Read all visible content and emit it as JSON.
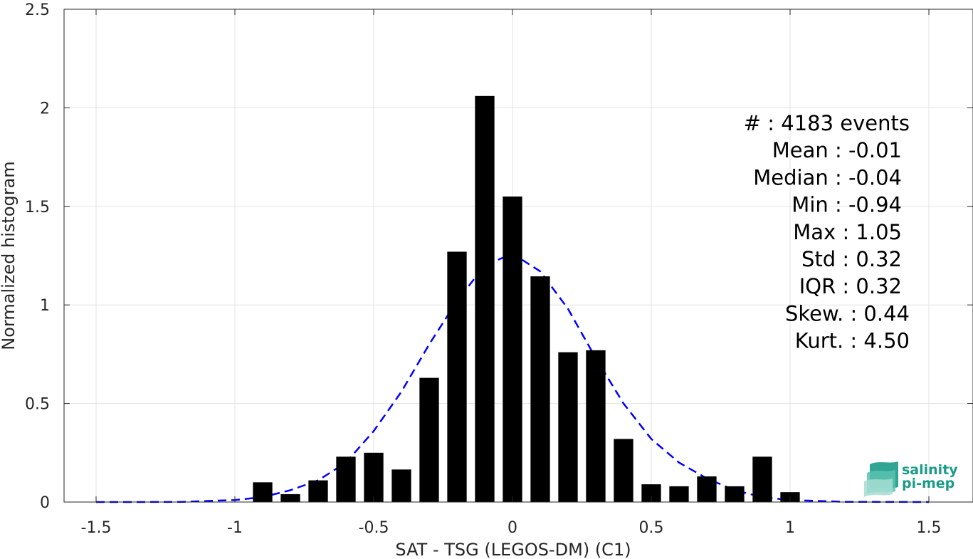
{
  "chart_data": {
    "type": "bar",
    "xlabel": "SAT - TSG (LEGOS-DM) (C1)",
    "ylabel": "Normalized histogram",
    "xlim": [
      -1.5,
      1.5
    ],
    "ylim": [
      0,
      2.5
    ],
    "x_ticks": [
      -1.5,
      -1,
      -0.5,
      0,
      0.5,
      1,
      1.5
    ],
    "x_tick_labels": [
      "-1.5",
      "-1",
      "-0.5",
      "0",
      "0.5",
      "1",
      "1.5"
    ],
    "y_ticks": [
      0,
      0.5,
      1,
      1.5,
      2,
      2.5
    ],
    "y_tick_labels": [
      "0",
      "0.5",
      "1",
      "1.5",
      "2",
      "2.5"
    ],
    "grid": true,
    "bar_color": "#000000",
    "bar_width": 0.07,
    "bins": [
      {
        "x": -0.9,
        "value": 0.1
      },
      {
        "x": -0.8,
        "value": 0.04
      },
      {
        "x": -0.7,
        "value": 0.11
      },
      {
        "x": -0.6,
        "value": 0.23
      },
      {
        "x": -0.5,
        "value": 0.25
      },
      {
        "x": -0.4,
        "value": 0.165
      },
      {
        "x": -0.3,
        "value": 0.63
      },
      {
        "x": -0.2,
        "value": 1.27
      },
      {
        "x": -0.1,
        "value": 2.06
      },
      {
        "x": 0.0,
        "value": 1.55
      },
      {
        "x": 0.1,
        "value": 1.145
      },
      {
        "x": 0.2,
        "value": 0.76
      },
      {
        "x": 0.3,
        "value": 0.77
      },
      {
        "x": 0.4,
        "value": 0.32
      },
      {
        "x": 0.5,
        "value": 0.09
      },
      {
        "x": 0.6,
        "value": 0.08
      },
      {
        "x": 0.7,
        "value": 0.13
      },
      {
        "x": 0.8,
        "value": 0.08
      },
      {
        "x": 0.9,
        "value": 0.23
      },
      {
        "x": 1.0,
        "value": 0.05
      }
    ],
    "fit_curve": {
      "style": "dashed",
      "color": "#0000ff",
      "points": [
        [
          -1.5,
          0.0
        ],
        [
          -1.2,
          0.0005
        ],
        [
          -1.0,
          0.01
        ],
        [
          -0.9,
          0.025
        ],
        [
          -0.8,
          0.06
        ],
        [
          -0.7,
          0.11
        ],
        [
          -0.6,
          0.2
        ],
        [
          -0.5,
          0.36
        ],
        [
          -0.4,
          0.56
        ],
        [
          -0.3,
          0.8
        ],
        [
          -0.2,
          1.02
        ],
        [
          -0.1,
          1.2
        ],
        [
          0.0,
          1.26
        ],
        [
          0.1,
          1.17
        ],
        [
          0.2,
          0.98
        ],
        [
          0.3,
          0.73
        ],
        [
          0.4,
          0.5
        ],
        [
          0.5,
          0.32
        ],
        [
          0.6,
          0.2
        ],
        [
          0.7,
          0.12
        ],
        [
          0.8,
          0.06
        ],
        [
          0.9,
          0.025
        ],
        [
          1.0,
          0.01
        ],
        [
          1.2,
          0.001
        ],
        [
          1.5,
          0.0
        ]
      ]
    }
  },
  "stats": {
    "lines": [
      "#  : 4183 events",
      "Mean : -0.01",
      "Median : -0.04",
      "Min : -0.94",
      "Max : 1.05",
      "Std : 0.32",
      "IQR : 0.32",
      "Skew. : 0.44",
      "Kurt. : 4.50"
    ],
    "right_edges": [
      1278,
      1267,
      1267,
      1267,
      1267,
      1267,
      1267,
      1278,
      1278
    ]
  },
  "logo": {
    "line1": "salinity",
    "line2": "pi-mep",
    "color": "#1a9b88"
  }
}
